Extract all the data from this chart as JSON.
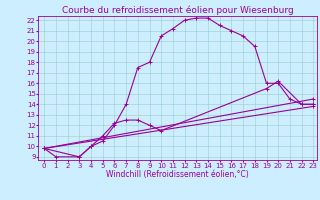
{
  "title": "Courbe du refroidissement éolien pour Wiesenburg",
  "xlabel": "Windchill (Refroidissement éolien,°C)",
  "bg_color": "#cceeff",
  "line_color": "#990099",
  "grid_color": "#99cccc",
  "xlim": [
    -0.5,
    23.3
  ],
  "ylim": [
    8.7,
    22.4
  ],
  "yticks": [
    9,
    10,
    11,
    12,
    13,
    14,
    15,
    16,
    17,
    18,
    19,
    20,
    21,
    22
  ],
  "xticks": [
    0,
    1,
    2,
    3,
    4,
    5,
    6,
    7,
    8,
    9,
    10,
    11,
    12,
    13,
    14,
    15,
    16,
    17,
    18,
    19,
    20,
    21,
    22,
    23
  ],
  "line1_x": [
    0,
    1,
    3,
    4,
    5,
    6,
    7,
    8,
    9,
    10,
    11,
    12,
    13,
    14,
    15,
    16,
    17,
    18,
    19,
    20,
    21,
    22,
    23
  ],
  "line1_y": [
    9.8,
    9.0,
    9.0,
    10.0,
    10.5,
    12.0,
    14.0,
    17.5,
    18.0,
    20.5,
    21.2,
    22.0,
    22.2,
    22.2,
    21.5,
    21.0,
    20.5,
    19.5,
    16.0,
    16.0,
    14.5,
    14.0,
    14.0
  ],
  "line2_x": [
    0,
    3,
    4,
    5,
    6,
    7,
    8,
    9,
    10,
    19,
    20,
    22,
    23
  ],
  "line2_y": [
    9.8,
    9.0,
    10.0,
    11.0,
    12.2,
    12.5,
    12.5,
    12.0,
    11.5,
    15.5,
    16.2,
    14.0,
    14.0
  ],
  "line3_x": [
    0,
    23
  ],
  "line3_y": [
    9.8,
    13.8
  ],
  "line4_x": [
    0,
    23
  ],
  "line4_y": [
    9.8,
    14.5
  ],
  "title_fontsize": 6.5,
  "axis_fontsize": 5.5,
  "tick_fontsize": 5.0
}
